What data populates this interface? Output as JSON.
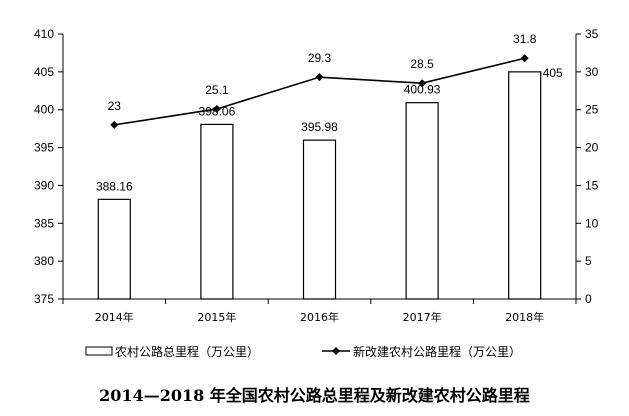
{
  "chart_data": {
    "type": "bar",
    "title": "2014—2018 年全国农村公路总里程及新改建农村公路里程",
    "categories": [
      "2014年",
      "2015年",
      "2016年",
      "2017年",
      "2018年"
    ],
    "series": [
      {
        "name": "农村公路总里程（万公里）",
        "type": "bar",
        "axis": "left",
        "values": [
          388.16,
          398.06,
          395.98,
          400.93,
          405
        ],
        "labels": [
          "388.16",
          "398.06",
          "395.98",
          "400.93",
          "405"
        ]
      },
      {
        "name": "新改建农村公路里程（万公里）",
        "type": "line",
        "axis": "right",
        "values": [
          23,
          25.1,
          29.3,
          28.5,
          31.8
        ],
        "labels": [
          "23",
          "25.1",
          "29.3",
          "28.5",
          "31.8"
        ]
      }
    ],
    "y_left": {
      "min": 375,
      "max": 410,
      "step": 5,
      "ticks": [
        "375",
        "380",
        "385",
        "390",
        "395",
        "400",
        "405",
        "410"
      ]
    },
    "y_right": {
      "min": 0,
      "max": 35,
      "step": 5,
      "ticks": [
        "0",
        "5",
        "10",
        "15",
        "20",
        "25",
        "30",
        "35"
      ]
    },
    "grid": false,
    "legend_position": "bottom",
    "colors": {
      "bar_fill": "#ffffff",
      "bar_stroke": "#000000",
      "line": "#000000",
      "axis": "#000000"
    }
  }
}
